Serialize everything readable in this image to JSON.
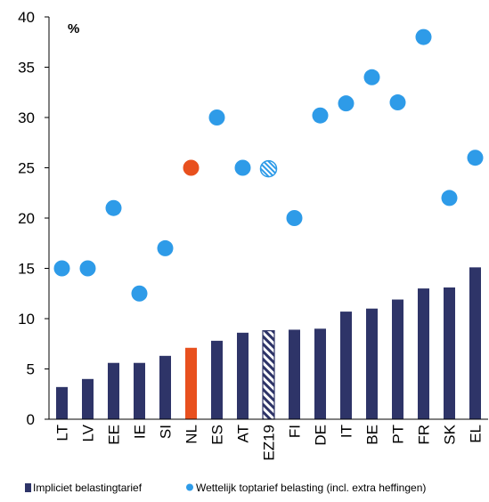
{
  "chart_data": {
    "type": "bar",
    "unit_label": "%",
    "categories": [
      "LT",
      "LV",
      "EE",
      "IE",
      "SI",
      "NL",
      "ES",
      "AT",
      "EZ19",
      "FI",
      "DE",
      "IT",
      "BE",
      "PT",
      "FR",
      "SK",
      "EL"
    ],
    "ylim": [
      0,
      40
    ],
    "yticks": [
      0,
      5,
      10,
      15,
      20,
      25,
      30,
      35,
      40
    ],
    "grid": false,
    "legend_position": "bottom",
    "highlight_category": "NL",
    "average_category": "EZ19",
    "series": [
      {
        "name": "Impliciet belastingtarief",
        "type": "bar",
        "color": "#2e3468",
        "values": [
          3.2,
          4.0,
          5.6,
          5.6,
          6.3,
          7.1,
          7.8,
          8.6,
          8.8,
          8.9,
          9.0,
          10.7,
          11.0,
          11.9,
          13.0,
          13.1,
          15.1
        ]
      },
      {
        "name": "Wettelijk toptarief belasting (incl. extra heffingen)",
        "type": "scatter",
        "color": "#2e9be8",
        "values": [
          15.0,
          15.0,
          21.0,
          12.5,
          17.0,
          25.0,
          30.0,
          25.0,
          24.9,
          20.0,
          30.2,
          31.4,
          34.0,
          31.5,
          38.0,
          22.0,
          26.0
        ]
      }
    ],
    "colors": {
      "highlight": "#e8501e",
      "average_stripe": "#2e3468",
      "average_dot_stripe": "#2e9be8"
    }
  }
}
